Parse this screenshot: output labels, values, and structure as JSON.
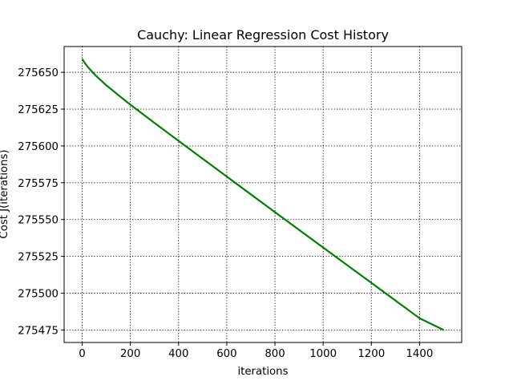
{
  "chart_data": {
    "type": "line",
    "title": "Cauchy: Linear Regression Cost History",
    "xlabel": "iterations",
    "ylabel": "Cost J(iterations)",
    "xlim": [
      -75,
      1575
    ],
    "ylim": [
      275466.5,
      275667.5
    ],
    "xticks": [
      0,
      200,
      400,
      600,
      800,
      1000,
      1200,
      1400
    ],
    "yticks": [
      275475,
      275500,
      275525,
      275550,
      275575,
      275600,
      275625,
      275650
    ],
    "grid": true,
    "line_color": "#008000",
    "series": [
      {
        "x": [
          0,
          10,
          20,
          30,
          50,
          75,
          100,
          150,
          200,
          300,
          400,
          500,
          600,
          700,
          800,
          900,
          1000,
          1100,
          1200,
          1300,
          1400,
          1500
        ],
        "y": [
          275659,
          275656.5,
          275654.3,
          275652.4,
          275648.8,
          275644.9,
          275641.2,
          275634.5,
          275628.0,
          275615.6,
          275603.4,
          275591.3,
          275579.2,
          275567.1,
          275555.0,
          275543.0,
          275531.0,
          275519.0,
          275507.0,
          275495.0,
          275483.0,
          275475.0
        ]
      }
    ]
  }
}
